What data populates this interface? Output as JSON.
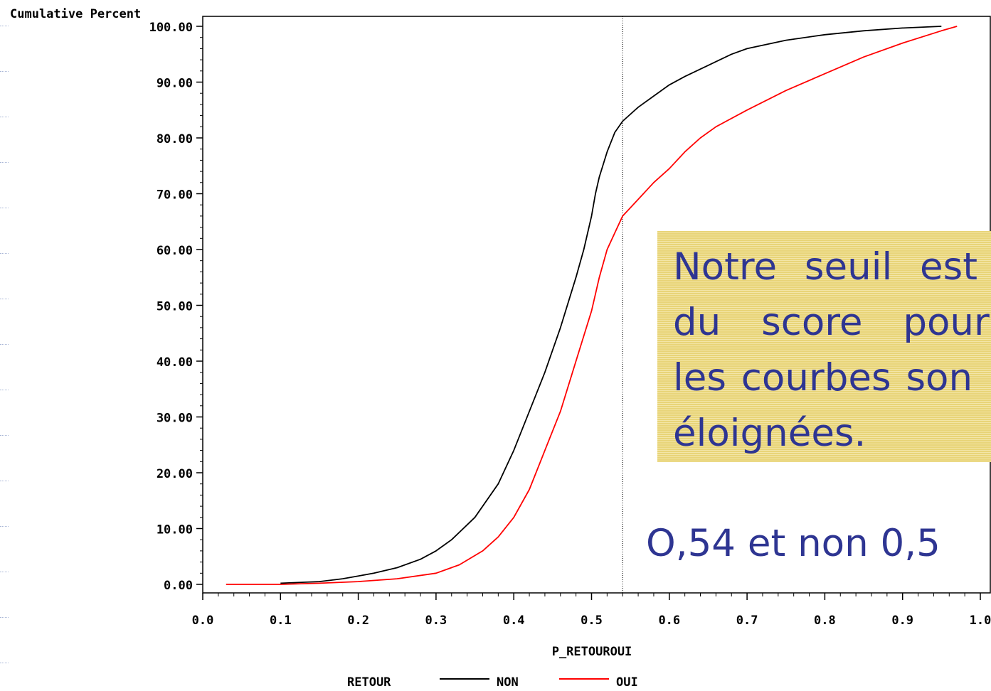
{
  "chart_data": {
    "type": "line",
    "ylabel": "Cumulative Percent",
    "xlabel": "P_RETOUROUI",
    "xlim": [
      0.0,
      1.0
    ],
    "ylim": [
      0.0,
      100.0
    ],
    "x_ticks": [
      "0.0",
      "0.1",
      "0.2",
      "0.3",
      "0.4",
      "0.5",
      "0.6",
      "0.7",
      "0.8",
      "0.9",
      "1.0"
    ],
    "y_ticks": [
      "0.00",
      "10.00",
      "20.00",
      "30.00",
      "40.00",
      "50.00",
      "60.00",
      "70.00",
      "80.00",
      "90.00",
      "100.00"
    ],
    "threshold_x": 0.54,
    "legend_title": "RETOUR",
    "legend_position": "bottom",
    "grid": false,
    "series": [
      {
        "name": "NON",
        "color": "#000000",
        "x": [
          0.1,
          0.15,
          0.18,
          0.2,
          0.22,
          0.25,
          0.28,
          0.3,
          0.32,
          0.35,
          0.38,
          0.4,
          0.42,
          0.44,
          0.46,
          0.48,
          0.49,
          0.5,
          0.505,
          0.51,
          0.52,
          0.53,
          0.54,
          0.56,
          0.58,
          0.6,
          0.62,
          0.65,
          0.68,
          0.7,
          0.75,
          0.8,
          0.85,
          0.9,
          0.95
        ],
        "y": [
          0.2,
          0.5,
          1.0,
          1.5,
          2.0,
          3.0,
          4.5,
          6.0,
          8.0,
          12.0,
          18.0,
          24.0,
          31.0,
          38.0,
          46.0,
          55.0,
          60.0,
          66.0,
          70.0,
          73.0,
          77.5,
          81.0,
          83.0,
          85.5,
          87.5,
          89.5,
          91.0,
          93.0,
          95.0,
          96.0,
          97.5,
          98.5,
          99.2,
          99.7,
          100.0
        ]
      },
      {
        "name": "OUI",
        "color": "#ff0000",
        "x": [
          0.03,
          0.1,
          0.15,
          0.2,
          0.25,
          0.3,
          0.33,
          0.36,
          0.38,
          0.4,
          0.42,
          0.44,
          0.46,
          0.48,
          0.5,
          0.51,
          0.52,
          0.53,
          0.54,
          0.56,
          0.58,
          0.6,
          0.62,
          0.64,
          0.66,
          0.7,
          0.75,
          0.8,
          0.85,
          0.9,
          0.95,
          0.97
        ],
        "y": [
          0.0,
          0.0,
          0.2,
          0.5,
          1.0,
          2.0,
          3.5,
          6.0,
          8.5,
          12.0,
          17.0,
          24.0,
          31.0,
          40.0,
          49.0,
          55.0,
          60.0,
          63.0,
          66.0,
          69.0,
          72.0,
          74.5,
          77.5,
          80.0,
          82.0,
          85.0,
          88.5,
          91.5,
          94.5,
          97.0,
          99.2,
          100.0
        ]
      }
    ]
  },
  "callout": {
    "lines": [
      "Notre seuil est",
      "du score pour",
      "les courbes son",
      "éloignées."
    ]
  },
  "note": "O,54 et non 0,5"
}
